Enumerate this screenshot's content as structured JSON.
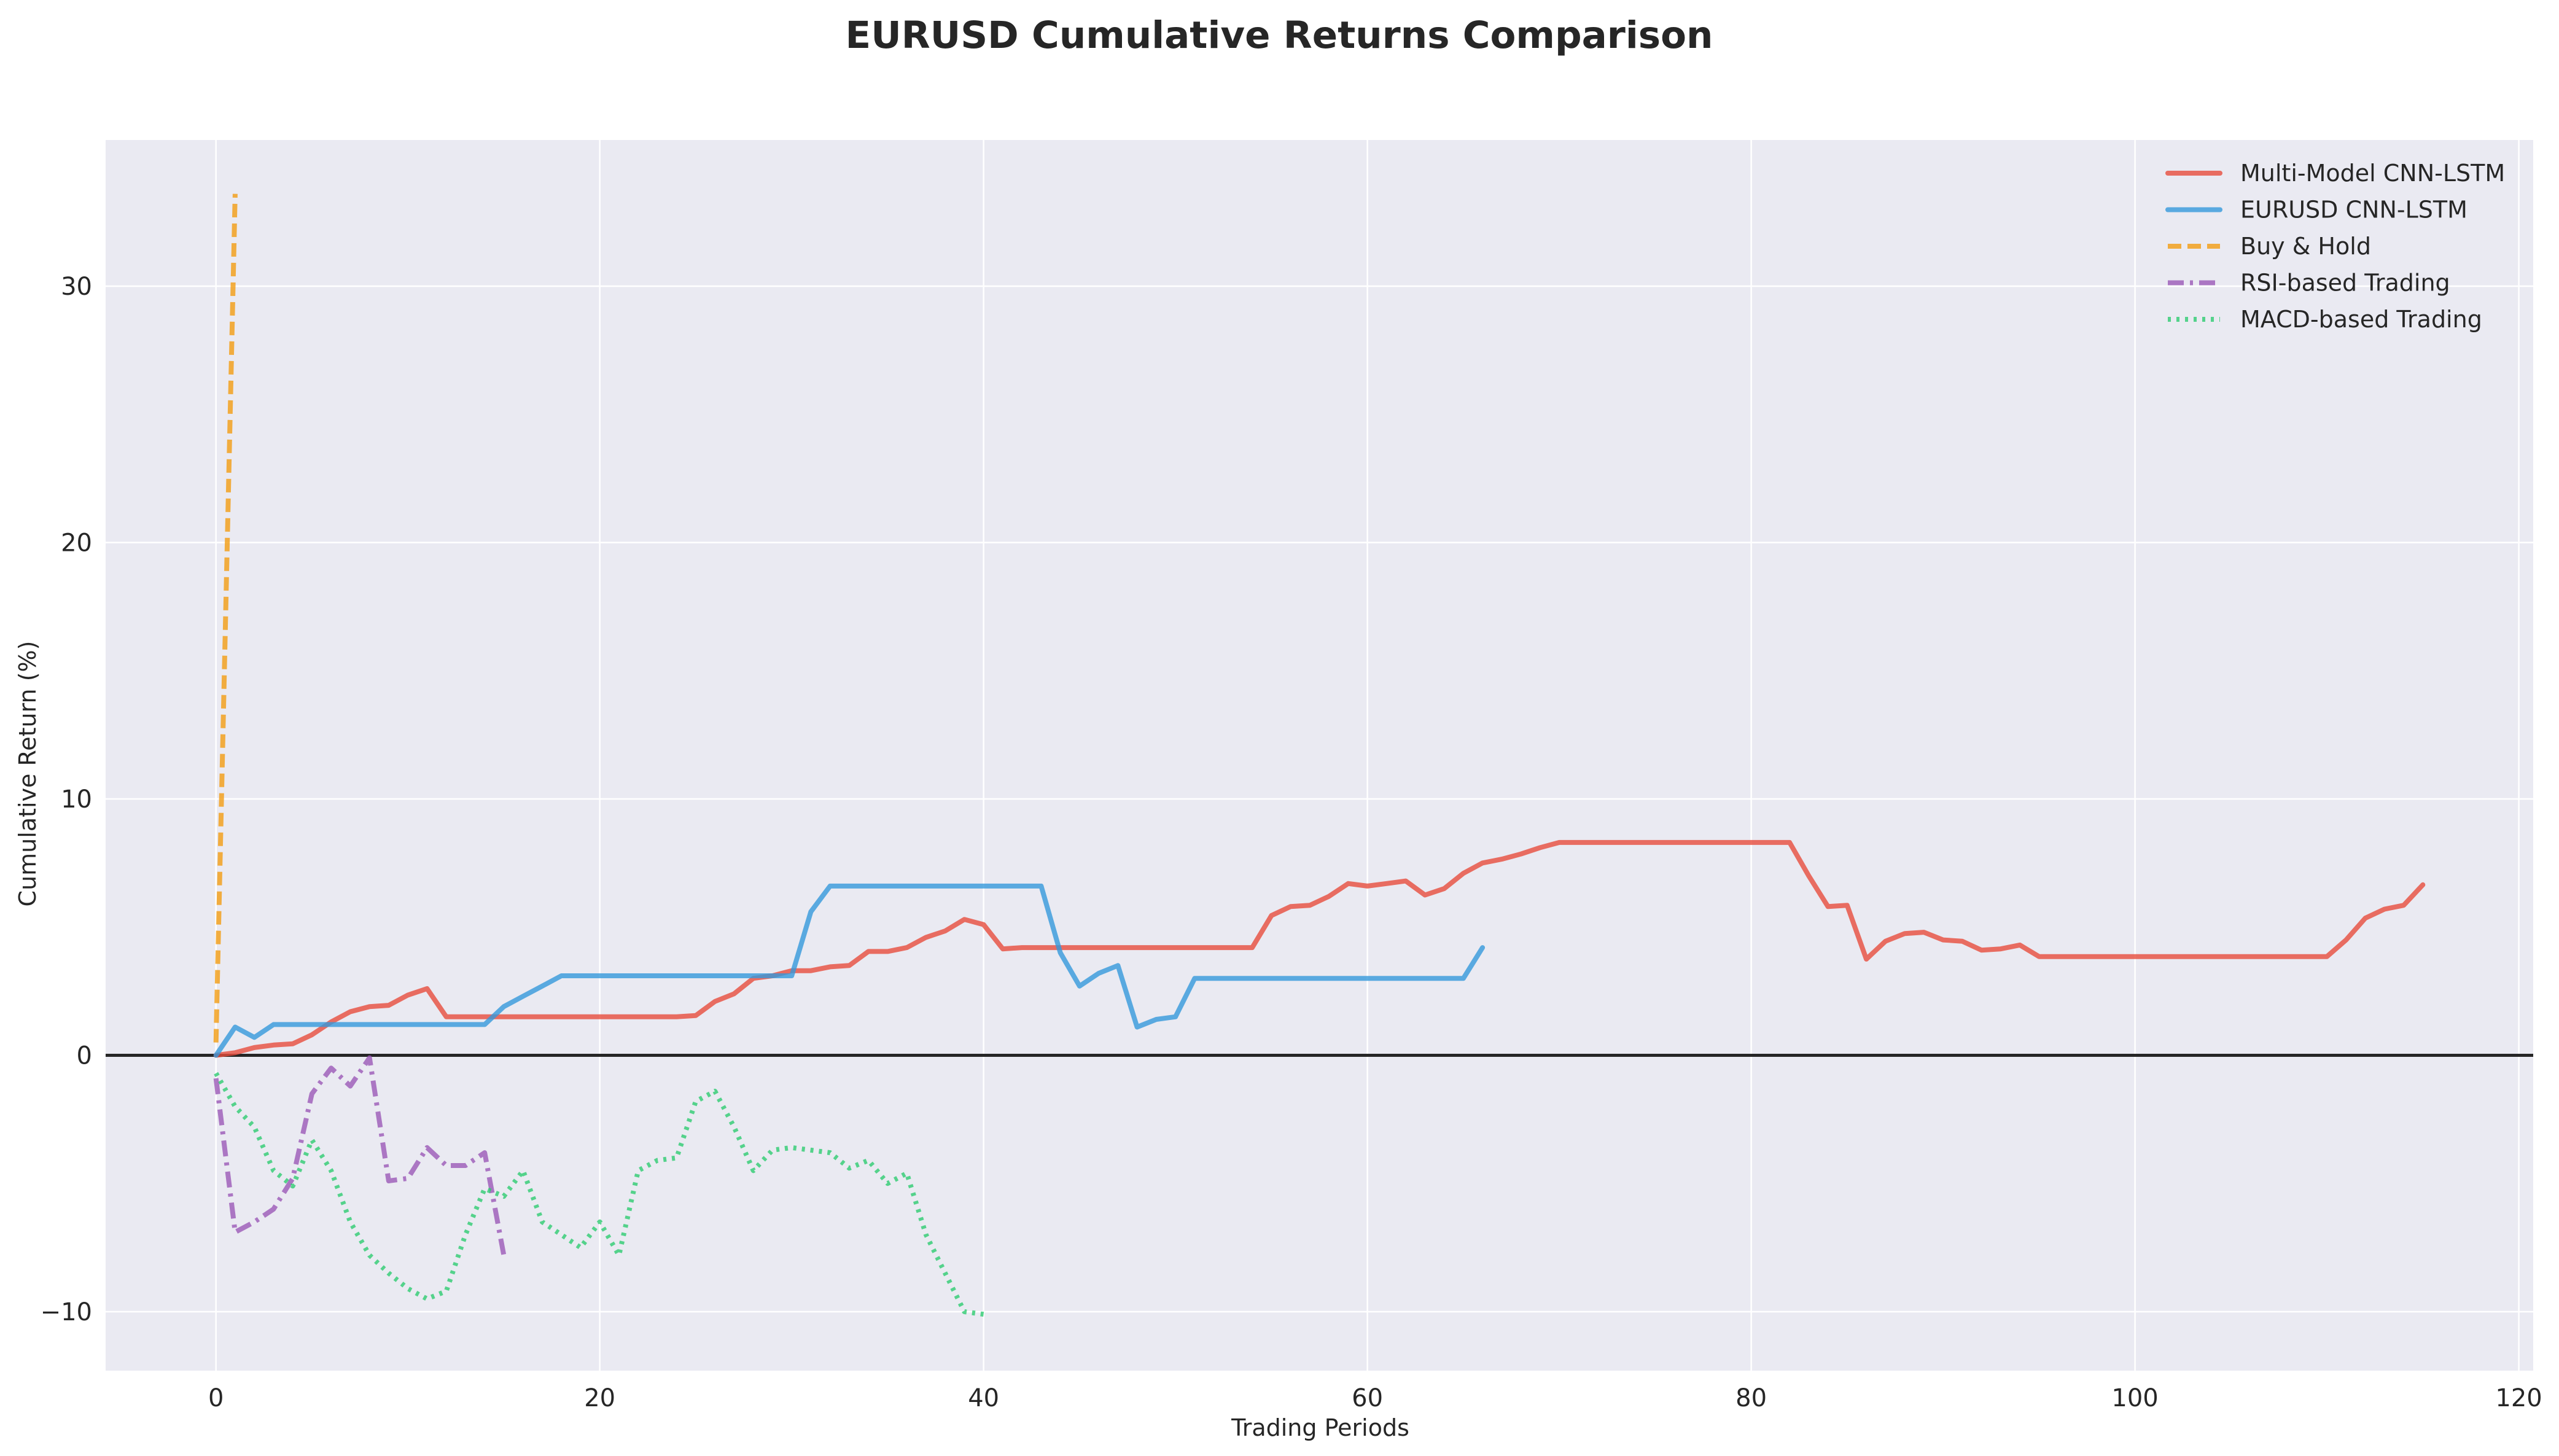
{
  "chart_data": {
    "type": "line",
    "title": "EURUSD Cumulative Returns Comparison",
    "xlabel": "Trading Periods",
    "ylabel": "Cumulative Return (%)",
    "xlim": [
      -5.75,
      120.75
    ],
    "ylim": [
      -12.3,
      35.7
    ],
    "xticks": [
      0,
      20,
      40,
      60,
      80,
      100,
      120
    ],
    "yticks": [
      -10,
      0,
      10,
      20,
      30
    ],
    "grid": true,
    "legend_position": "top-right",
    "reference_line": {
      "y": 0,
      "color": "#262626"
    },
    "background": "#eaeaf2",
    "series": [
      {
        "name": "Multi-Model CNN-LSTM",
        "color": "#e74c3c",
        "style": "solid",
        "x": [
          0,
          1,
          2,
          3,
          4,
          5,
          6,
          7,
          8,
          9,
          10,
          11,
          12,
          13,
          14,
          15,
          16,
          17,
          18,
          19,
          20,
          21,
          22,
          23,
          24,
          25,
          26,
          27,
          28,
          29,
          30,
          31,
          32,
          33,
          34,
          35,
          36,
          37,
          38,
          39,
          40,
          41,
          42,
          43,
          44,
          45,
          46,
          47,
          48,
          49,
          50,
          51,
          52,
          53,
          54,
          55,
          56,
          57,
          58,
          59,
          60,
          61,
          62,
          63,
          64,
          65,
          66,
          67,
          68,
          69,
          70,
          71,
          72,
          73,
          74,
          75,
          76,
          77,
          78,
          79,
          80,
          81,
          82,
          83,
          84,
          85,
          86,
          87,
          88,
          89,
          90,
          91,
          92,
          93,
          94,
          95,
          96,
          97,
          98,
          99,
          100,
          101,
          102,
          103,
          104,
          105,
          106,
          107,
          108,
          109,
          110,
          111,
          112,
          113,
          114,
          115
        ],
        "y": [
          0,
          0.1,
          0.3,
          0.4,
          0.45,
          0.8,
          1.3,
          1.7,
          1.9,
          1.95,
          2.35,
          2.6,
          1.5,
          1.5,
          1.5,
          1.5,
          1.5,
          1.5,
          1.5,
          1.5,
          1.5,
          1.5,
          1.5,
          1.5,
          1.5,
          1.55,
          2.1,
          2.4,
          3.0,
          3.1,
          3.3,
          3.3,
          3.45,
          3.5,
          4.05,
          4.05,
          4.2,
          4.6,
          4.85,
          5.3,
          5.1,
          4.15,
          4.2,
          4.2,
          4.2,
          4.2,
          4.2,
          4.2,
          4.2,
          4.2,
          4.2,
          4.2,
          4.2,
          4.2,
          4.2,
          5.45,
          5.8,
          5.85,
          6.2,
          6.7,
          6.6,
          6.7,
          6.8,
          6.25,
          6.5,
          7.1,
          7.5,
          7.65,
          7.85,
          8.1,
          8.3,
          8.3,
          8.3,
          8.3,
          8.3,
          8.3,
          8.3,
          8.3,
          8.3,
          8.3,
          8.3,
          8.3,
          8.3,
          7.0,
          5.8,
          5.85,
          3.75,
          4.45,
          4.75,
          4.8,
          4.5,
          4.45,
          4.1,
          4.15,
          4.3,
          3.85,
          3.85,
          3.85,
          3.85,
          3.85,
          3.85,
          3.85,
          3.85,
          3.85,
          3.85,
          3.85,
          3.85,
          3.85,
          3.85,
          3.85,
          3.85,
          4.5,
          5.35,
          5.7,
          5.85,
          6.65
        ]
      },
      {
        "name": "EURUSD CNN-LSTM",
        "color": "#3498db",
        "style": "solid",
        "x": [
          0,
          1,
          2,
          3,
          4,
          5,
          6,
          7,
          8,
          9,
          10,
          11,
          12,
          13,
          14,
          15,
          16,
          17,
          18,
          19,
          20,
          21,
          22,
          23,
          24,
          25,
          26,
          27,
          28,
          29,
          30,
          31,
          32,
          33,
          34,
          35,
          36,
          37,
          38,
          39,
          40,
          41,
          42,
          43,
          44,
          45,
          46,
          47,
          48,
          49,
          50,
          51,
          52,
          53,
          54,
          55,
          56,
          57,
          58,
          59,
          60,
          61,
          62,
          63,
          64,
          65,
          66
        ],
        "y": [
          0,
          1.1,
          0.7,
          1.2,
          1.2,
          1.2,
          1.2,
          1.2,
          1.2,
          1.2,
          1.2,
          1.2,
          1.2,
          1.2,
          1.2,
          1.9,
          2.3,
          2.7,
          3.1,
          3.1,
          3.1,
          3.1,
          3.1,
          3.1,
          3.1,
          3.1,
          3.1,
          3.1,
          3.1,
          3.1,
          3.1,
          5.6,
          6.6,
          6.6,
          6.6,
          6.6,
          6.6,
          6.6,
          6.6,
          6.6,
          6.6,
          6.6,
          6.6,
          6.6,
          4.0,
          2.7,
          3.2,
          3.5,
          1.1,
          1.4,
          1.5,
          3.0,
          3.0,
          3.0,
          3.0,
          3.0,
          3.0,
          3.0,
          3.0,
          3.0,
          3.0,
          3.0,
          3.0,
          3.0,
          3.0,
          3.0,
          4.2
        ]
      },
      {
        "name": "Buy & Hold",
        "color": "#f39c12",
        "style": "dashed",
        "x": [
          0,
          1
        ],
        "y": [
          0.5,
          33.6
        ]
      },
      {
        "name": "RSI-based Trading",
        "color": "#9b59b6",
        "style": "dashdot",
        "x": [
          0,
          1,
          2,
          3,
          4,
          5,
          6,
          7,
          8,
          9,
          10,
          11,
          12,
          13,
          14,
          15
        ],
        "y": [
          -0.9,
          -6.9,
          -6.5,
          -6.0,
          -4.8,
          -1.5,
          -0.5,
          -1.2,
          -0.1,
          -4.9,
          -4.8,
          -3.6,
          -4.3,
          -4.3,
          -3.8,
          -7.8
        ]
      },
      {
        "name": "MACD-based Trading",
        "color": "#2ecc71",
        "style": "dotted",
        "x": [
          0,
          1,
          2,
          3,
          4,
          5,
          6,
          7,
          8,
          9,
          10,
          11,
          12,
          13,
          14,
          15,
          16,
          17,
          18,
          19,
          20,
          21,
          22,
          23,
          24,
          25,
          26,
          27,
          28,
          29,
          30,
          31,
          32,
          33,
          34,
          35,
          36,
          37,
          38,
          39,
          40
        ],
        "y": [
          -0.7,
          -2.0,
          -2.8,
          -4.5,
          -5.1,
          -3.3,
          -4.5,
          -6.5,
          -7.8,
          -8.5,
          -9.1,
          -9.5,
          -9.2,
          -7.0,
          -5.2,
          -5.5,
          -4.5,
          -6.5,
          -7.0,
          -7.5,
          -6.5,
          -7.8,
          -4.5,
          -4.1,
          -4.0,
          -1.8,
          -1.4,
          -2.8,
          -4.5,
          -3.7,
          -3.6,
          -3.7,
          -3.8,
          -4.4,
          -4.1,
          -5.0,
          -4.6,
          -7.0,
          -8.5,
          -10.0,
          -10.1
        ]
      }
    ]
  }
}
